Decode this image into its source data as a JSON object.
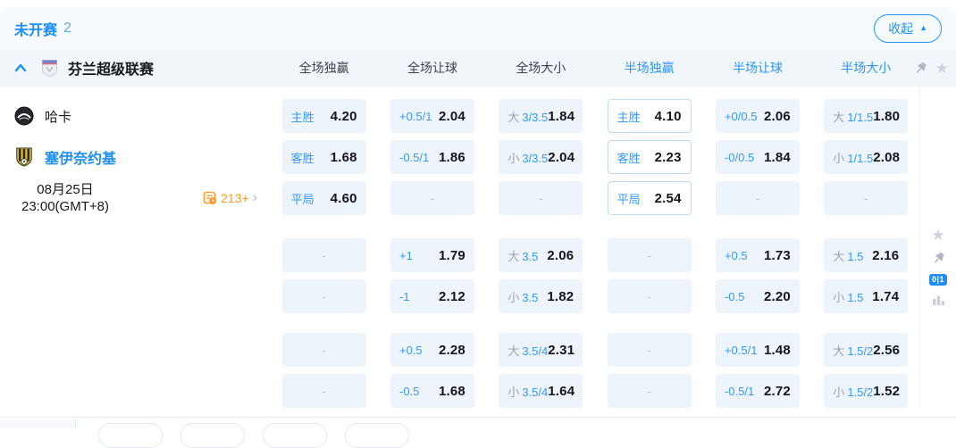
{
  "topbar": {
    "status": "未开赛",
    "count": "2",
    "collapse": "收起"
  },
  "league": {
    "name": "芬兰超级联赛",
    "columns": [
      "全场独赢",
      "全场让球",
      "全场大小",
      "半场独赢",
      "半场让球",
      "半场大小"
    ]
  },
  "match": {
    "home_team": "哈卡",
    "away_team": "塞伊奈约基",
    "date": "08月25日",
    "time": "23:00(GMT+8)",
    "more_markets": "213+",
    "score_badge": "0|1"
  },
  "odds": {
    "rows": [
      {
        "cells": [
          {
            "b": "主胜",
            "v": "4.20"
          },
          {
            "b": "+0.5/1",
            "v": "2.04"
          },
          {
            "g": "大",
            "b": "3/3.5",
            "v": "1.84"
          },
          {
            "b": "主胜",
            "v": "4.10",
            "o": true
          },
          {
            "b": "+0/0.5",
            "v": "2.06"
          },
          {
            "g": "大",
            "b": "1/1.5",
            "v": "1.80"
          }
        ]
      },
      {
        "cells": [
          {
            "b": "客胜",
            "v": "1.68"
          },
          {
            "b": "-0.5/1",
            "v": "1.86"
          },
          {
            "g": "小",
            "b": "3/3.5",
            "v": "2.04"
          },
          {
            "b": "客胜",
            "v": "2.23",
            "o": true
          },
          {
            "b": "-0/0.5",
            "v": "1.84"
          },
          {
            "g": "小",
            "b": "1/1.5",
            "v": "2.08"
          }
        ]
      },
      {
        "cells": [
          {
            "b": "平局",
            "v": "4.60"
          },
          {
            "d": "-"
          },
          {
            "d": "-"
          },
          {
            "b": "平局",
            "v": "2.54",
            "o": true
          },
          {
            "d": "-"
          },
          {
            "d": "-"
          }
        ]
      },
      {
        "cells": [
          {
            "d": "-"
          },
          {
            "b": "+1",
            "v": "1.79"
          },
          {
            "g": "大",
            "b": "3.5",
            "v": "2.06"
          },
          {
            "d": "-"
          },
          {
            "b": "+0.5",
            "v": "1.73"
          },
          {
            "g": "大",
            "b": "1.5",
            "v": "2.16"
          }
        ]
      },
      {
        "cells": [
          {
            "d": "-"
          },
          {
            "b": "-1",
            "v": "2.12"
          },
          {
            "g": "小",
            "b": "3.5",
            "v": "1.82"
          },
          {
            "d": "-"
          },
          {
            "b": "-0.5",
            "v": "2.20"
          },
          {
            "g": "小",
            "b": "1.5",
            "v": "1.74"
          }
        ]
      },
      {
        "cells": [
          {
            "d": "-"
          },
          {
            "b": "+0.5",
            "v": "2.28"
          },
          {
            "g": "大",
            "b": "3.5/4",
            "v": "2.31"
          },
          {
            "d": "-"
          },
          {
            "b": "+0.5/1",
            "v": "1.48"
          },
          {
            "g": "大",
            "b": "1.5/2",
            "v": "2.56"
          }
        ]
      },
      {
        "cells": [
          {
            "d": "-"
          },
          {
            "b": "-0.5",
            "v": "1.68"
          },
          {
            "g": "小",
            "b": "3.5/4",
            "v": "1.64"
          },
          {
            "d": "-"
          },
          {
            "b": "-0.5/1",
            "v": "2.72"
          },
          {
            "g": "小",
            "b": "1.5/2",
            "v": "1.52"
          }
        ]
      }
    ]
  },
  "icons": {
    "collapse_arrow": "triangle-up",
    "league_collapse": "chevron-up",
    "league_logo": "shield",
    "home_logo": "haka-crest",
    "away_logo": "sjk-shield",
    "markets_icon": "list-clock",
    "more_icon": "chevron-right",
    "pin": "pushpin",
    "favorite": "star",
    "stats": "bar-chart"
  },
  "colors": {
    "accent": "#1e8ff2",
    "orange": "#f99d2f",
    "cell_bg": "#edf4fc"
  }
}
